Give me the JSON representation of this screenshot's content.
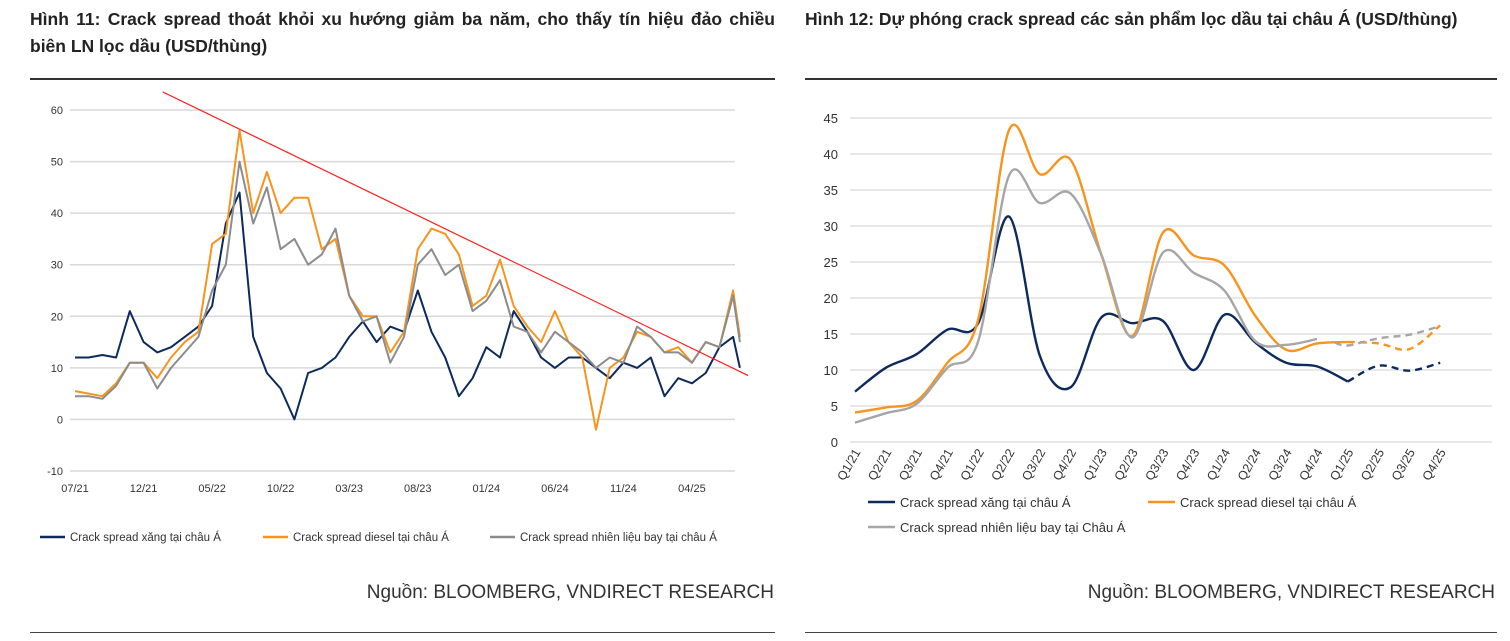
{
  "figure11": {
    "title": "Hình 11: Crack spread thoát khỏi xu hướng giảm ba năm, cho thấy tín hiệu đảo chiều biên LN lọc dầu (USD/thùng)",
    "source": "Nguồn: BLOOMBERG, VNDIRECT RESEARCH"
  },
  "figure12": {
    "title": "Hình 12: Dự phóng crack spread các sản phẩm lọc dầu tại châu Á (USD/thùng)",
    "source": "Nguồn: BLOOMBERG, VNDIRECT RESEARCH"
  },
  "chart_data": [
    {
      "type": "line",
      "title": "Hình 11",
      "xlabel": "",
      "ylabel": "",
      "ylim": [
        -10,
        60
      ],
      "yticks": [
        "-10",
        "0",
        "10",
        "20",
        "30",
        "40",
        "50",
        "60"
      ],
      "xticks": [
        "07/21",
        "12/21",
        "05/22",
        "10/22",
        "03/23",
        "08/23",
        "01/24",
        "06/24",
        "11/24",
        "04/25"
      ],
      "x_unit": "months since 07/21",
      "x": [
        0,
        1,
        2,
        3,
        4,
        5,
        6,
        7,
        8,
        9,
        10,
        11,
        12,
        13,
        14,
        15,
        16,
        17,
        18,
        19,
        20,
        21,
        22,
        23,
        24,
        25,
        26,
        27,
        28,
        29,
        30,
        31,
        32,
        33,
        34,
        35,
        36,
        37,
        38,
        39,
        40,
        41,
        42,
        43,
        44,
        45,
        46,
        47,
        48,
        48.5
      ],
      "series": [
        {
          "name": "Crack spread xăng tại châu Á",
          "color": "#0d2a5c",
          "values": [
            12,
            12,
            12.5,
            12,
            21,
            15,
            13,
            14,
            16,
            18,
            22,
            38,
            44,
            16,
            9,
            6,
            0,
            9,
            10,
            12,
            16,
            19,
            15,
            18,
            17,
            25,
            17,
            12,
            4.5,
            8,
            14,
            12,
            21,
            17,
            12,
            10,
            12,
            12,
            10,
            8,
            11,
            10,
            12,
            4.5,
            8,
            7,
            9,
            14,
            16,
            10
          ]
        },
        {
          "name": "Crack spread diesel tại châu Á",
          "color": "#f7941d",
          "values": [
            5.5,
            5,
            4.5,
            7,
            11,
            11,
            8,
            12,
            15,
            17,
            34,
            36,
            56,
            40,
            48,
            40,
            43,
            43,
            33,
            35,
            24,
            20,
            20,
            13,
            17,
            33,
            37,
            36,
            32,
            22,
            24,
            31,
            22,
            18,
            15,
            21,
            15,
            12,
            -2,
            10,
            12,
            17,
            16,
            13,
            14,
            11,
            15,
            14,
            25,
            16
          ]
        },
        {
          "name": "Crack spread nhiên liệu bay tại châu Á",
          "color": "#8c8c8c",
          "values": [
            4.5,
            4.5,
            4,
            6.5,
            11,
            11,
            6,
            10,
            13,
            16,
            25,
            30,
            50,
            38,
            45,
            33,
            35,
            30,
            32,
            37,
            24,
            19,
            20,
            11,
            16,
            30,
            33,
            28,
            30,
            21,
            23,
            27,
            18,
            17,
            13,
            17,
            15,
            13,
            10,
            12,
            11,
            18,
            16,
            13,
            13,
            11,
            15,
            14,
            24,
            15
          ]
        }
      ],
      "trendline": {
        "color": "#ff2020",
        "from": [
          6.4,
          63.5
        ],
        "to": [
          49.1,
          8.5
        ]
      },
      "legend": "bottom",
      "grid": true
    },
    {
      "type": "line",
      "title": "Hình 12",
      "xlabel": "",
      "ylabel": "",
      "ylim": [
        0,
        45
      ],
      "yticks": [
        "0",
        "5",
        "10",
        "15",
        "20",
        "25",
        "30",
        "35",
        "40",
        "45"
      ],
      "categories": [
        "Q1/21",
        "Q2/21",
        "Q3/21",
        "Q4/21",
        "Q1/22",
        "Q2/22",
        "Q3/22",
        "Q4/22",
        "Q1/23",
        "Q2/23",
        "Q3/23",
        "Q4/23",
        "Q1/24",
        "Q2/24",
        "Q3/24",
        "Q4/24",
        "Q1/25",
        "Q2/25",
        "Q3/25",
        "Q4/25"
      ],
      "series": [
        {
          "name": "Crack spread xăng tại châu Á",
          "color": "#0d2a5c",
          "forecast_from": 16,
          "values": [
            7,
            10.3,
            12.2,
            15.6,
            16.5,
            31.3,
            12,
            7.6,
            17.3,
            16.5,
            16.8,
            10,
            17.7,
            13.8,
            11,
            10.5,
            8.4,
            10.6,
            9.9,
            11
          ]
        },
        {
          "name": "Crack spread diesel tại châu Á",
          "color": "#f7941d",
          "forecast_from": 16,
          "values": [
            4.1,
            4.8,
            5.7,
            11,
            17,
            43.3,
            37.2,
            39.2,
            26,
            14.7,
            29.1,
            25.9,
            24.5,
            17.5,
            12.8,
            13.7,
            13.9,
            13.7,
            12.9,
            16.2
          ]
        },
        {
          "name": "Crack spread nhiên liệu bay tại Châu Á",
          "color": "#a6a6a6",
          "forecast_from": 15,
          "values": [
            2.7,
            4,
            5.3,
            10.3,
            14,
            37,
            33.2,
            34.5,
            26,
            14.5,
            26.3,
            23.5,
            21,
            14,
            13.5,
            14.3,
            13.4,
            14.4,
            14.9,
            16.1
          ]
        }
      ],
      "legend": "bottom",
      "grid": true
    }
  ]
}
